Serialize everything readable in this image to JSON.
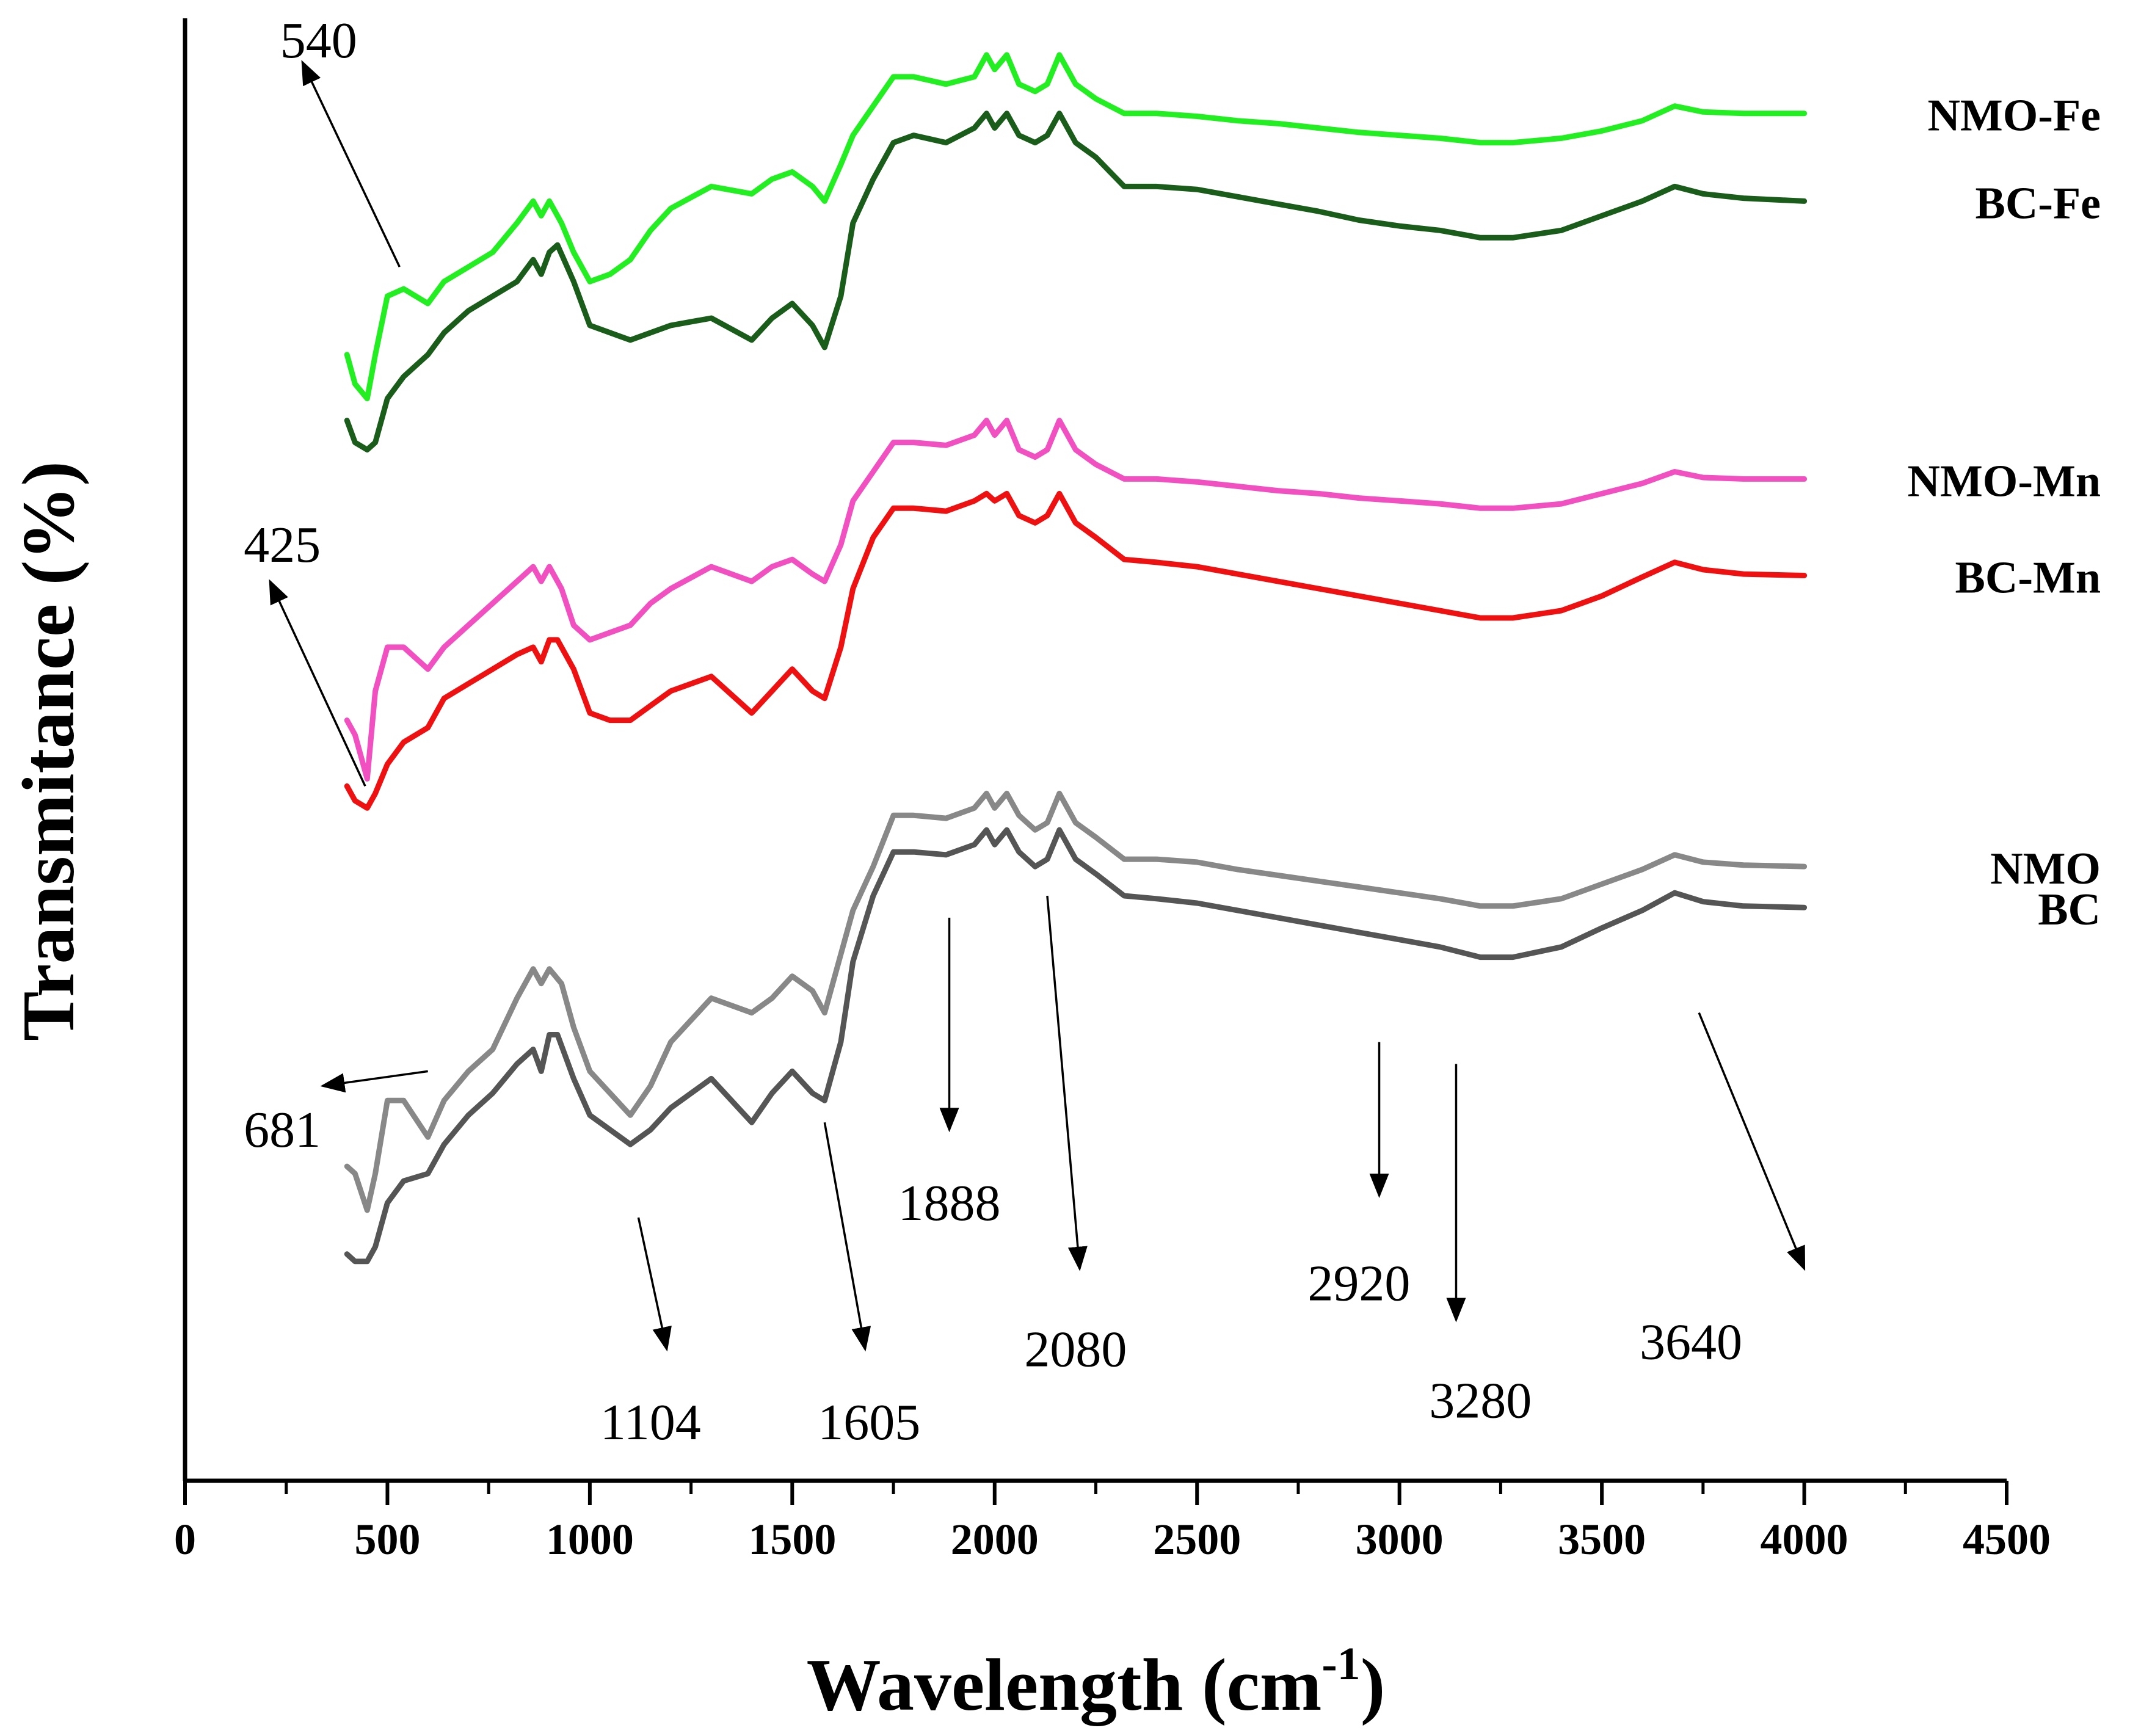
{
  "chart_data": {
    "type": "line",
    "title": "",
    "xlabel": "Wavelength (cm",
    "xlabel_sup": "-1",
    "xlabel_close": ")",
    "ylabel": "Transmitance (%)",
    "xlim": [
      0,
      4500
    ],
    "ylim": [
      0,
      100
    ],
    "y_ticks_shown": false,
    "grid": false,
    "legend": "inline labels at right end of each curve",
    "x_ticks": [
      0,
      500,
      1000,
      1500,
      2000,
      2500,
      3000,
      3500,
      4000,
      4500
    ],
    "x_tick_labels": [
      "0",
      "500",
      "1000",
      "1500",
      "2000",
      "2500",
      "3000",
      "3500",
      "4000",
      "4500"
    ],
    "series": [
      {
        "name": "NMO-Fe",
        "color": "#22ee22",
        "x": [
          400,
          420,
          450,
          470,
          500,
          540,
          600,
          640,
          700,
          760,
          820,
          860,
          880,
          900,
          930,
          960,
          1000,
          1050,
          1100,
          1150,
          1200,
          1300,
          1400,
          1450,
          1500,
          1550,
          1580,
          1620,
          1650,
          1700,
          1750,
          1800,
          1880,
          1950,
          1980,
          2000,
          2030,
          2060,
          2100,
          2130,
          2160,
          2200,
          2250,
          2320,
          2400,
          2500,
          2600,
          2700,
          2800,
          2900,
          3000,
          3100,
          3200,
          3280,
          3400,
          3500,
          3600,
          3680,
          3750,
          3850,
          4000
        ],
        "y": [
          77.0,
          75.0,
          74.0,
          77.0,
          81.0,
          81.5,
          80.5,
          82.0,
          83.0,
          84.0,
          86.0,
          87.5,
          86.5,
          87.5,
          86.0,
          84.0,
          82.0,
          82.5,
          83.5,
          85.5,
          87.0,
          88.5,
          88.0,
          89.0,
          89.5,
          88.5,
          87.5,
          90.0,
          92.0,
          94.0,
          96.0,
          96.0,
          95.5,
          96.0,
          97.5,
          96.5,
          97.5,
          95.5,
          95.0,
          95.5,
          97.5,
          95.5,
          94.5,
          93.5,
          93.5,
          93.3,
          93.0,
          92.8,
          92.5,
          92.2,
          92.0,
          91.8,
          91.5,
          91.5,
          91.8,
          92.3,
          93.0,
          94.0,
          93.6,
          93.5,
          93.5
        ]
      },
      {
        "name": "BC-Fe",
        "color": "#1a5c1a",
        "x": [
          400,
          420,
          450,
          470,
          500,
          540,
          600,
          640,
          700,
          760,
          820,
          860,
          880,
          900,
          920,
          960,
          1000,
          1050,
          1100,
          1150,
          1200,
          1300,
          1400,
          1450,
          1500,
          1550,
          1580,
          1620,
          1650,
          1700,
          1750,
          1800,
          1880,
          1950,
          1980,
          2000,
          2030,
          2060,
          2100,
          2130,
          2160,
          2200,
          2250,
          2320,
          2400,
          2500,
          2600,
          2700,
          2800,
          2900,
          3000,
          3100,
          3200,
          3280,
          3400,
          3500,
          3600,
          3680,
          3750,
          3850,
          4000
        ],
        "y": [
          72.5,
          71.0,
          70.5,
          71.0,
          74.0,
          75.5,
          77.0,
          78.5,
          80.0,
          81.0,
          82.0,
          83.5,
          82.5,
          84.0,
          84.5,
          82.0,
          79.0,
          78.5,
          78.0,
          78.5,
          79.0,
          79.5,
          78.0,
          79.5,
          80.5,
          79.0,
          77.5,
          81.0,
          86.0,
          89.0,
          91.5,
          92.0,
          91.5,
          92.5,
          93.5,
          92.5,
          93.5,
          92.0,
          91.5,
          92.0,
          93.5,
          91.5,
          90.5,
          88.5,
          88.5,
          88.3,
          87.8,
          87.3,
          86.8,
          86.2,
          85.8,
          85.5,
          85.0,
          85.0,
          85.5,
          86.5,
          87.5,
          88.5,
          88.0,
          87.7,
          87.5
        ]
      },
      {
        "name": "NMO-Mn",
        "color": "#f050c0",
        "x": [
          400,
          420,
          450,
          470,
          500,
          540,
          600,
          640,
          700,
          760,
          820,
          860,
          880,
          900,
          930,
          960,
          1000,
          1050,
          1100,
          1150,
          1200,
          1300,
          1400,
          1450,
          1500,
          1550,
          1580,
          1620,
          1650,
          1700,
          1750,
          1800,
          1880,
          1950,
          1980,
          2000,
          2030,
          2060,
          2100,
          2130,
          2160,
          2200,
          2250,
          2320,
          2400,
          2500,
          2600,
          2700,
          2800,
          2900,
          3000,
          3100,
          3200,
          3280,
          3400,
          3500,
          3600,
          3680,
          3750,
          3850,
          4000
        ],
        "y": [
          52.0,
          51.0,
          48.0,
          54.0,
          57.0,
          57.0,
          55.5,
          57.0,
          58.5,
          60.0,
          61.5,
          62.5,
          61.5,
          62.5,
          61.0,
          58.5,
          57.5,
          58.0,
          58.5,
          60.0,
          61.0,
          62.5,
          61.5,
          62.5,
          63.0,
          62.0,
          61.5,
          64.0,
          67.0,
          69.0,
          71.0,
          71.0,
          70.8,
          71.5,
          72.5,
          71.5,
          72.5,
          70.5,
          70.0,
          70.5,
          72.5,
          70.5,
          69.5,
          68.5,
          68.5,
          68.3,
          68.0,
          67.7,
          67.5,
          67.2,
          67.0,
          66.8,
          66.5,
          66.5,
          66.8,
          67.5,
          68.2,
          69.0,
          68.6,
          68.5,
          68.5
        ]
      },
      {
        "name": "BC-Mn",
        "color": "#ee1111",
        "x": [
          400,
          420,
          450,
          470,
          500,
          540,
          600,
          640,
          700,
          760,
          820,
          860,
          880,
          900,
          920,
          960,
          1000,
          1050,
          1100,
          1150,
          1200,
          1300,
          1400,
          1450,
          1500,
          1550,
          1580,
          1620,
          1650,
          1700,
          1750,
          1800,
          1880,
          1950,
          1980,
          2000,
          2030,
          2060,
          2100,
          2130,
          2160,
          2200,
          2250,
          2320,
          2400,
          2500,
          2600,
          2700,
          2800,
          2900,
          3000,
          3100,
          3200,
          3280,
          3400,
          3500,
          3600,
          3680,
          3750,
          3850,
          4000
        ],
        "y": [
          47.5,
          46.5,
          46.0,
          47.0,
          49.0,
          50.5,
          51.5,
          53.5,
          54.5,
          55.5,
          56.5,
          57.0,
          56.0,
          57.5,
          57.5,
          55.5,
          52.5,
          52.0,
          52.0,
          53.0,
          54.0,
          55.0,
          52.5,
          54.0,
          55.5,
          54.0,
          53.5,
          57.0,
          61.0,
          64.5,
          66.5,
          66.5,
          66.3,
          67.0,
          67.5,
          67.0,
          67.5,
          66.0,
          65.5,
          66.0,
          67.5,
          65.5,
          64.5,
          63.0,
          62.8,
          62.5,
          62.0,
          61.5,
          61.0,
          60.5,
          60.0,
          59.5,
          59.0,
          59.0,
          59.5,
          60.5,
          61.8,
          62.8,
          62.3,
          62.0,
          61.9
        ]
      },
      {
        "name": "NMO",
        "color": "#888888",
        "x": [
          400,
          420,
          450,
          470,
          500,
          540,
          600,
          640,
          700,
          760,
          820,
          860,
          880,
          900,
          930,
          960,
          1000,
          1050,
          1100,
          1150,
          1200,
          1300,
          1400,
          1450,
          1500,
          1550,
          1580,
          1620,
          1650,
          1700,
          1750,
          1800,
          1880,
          1950,
          1980,
          2000,
          2030,
          2060,
          2100,
          2130,
          2160,
          2200,
          2250,
          2320,
          2400,
          2500,
          2600,
          2700,
          2800,
          2900,
          3000,
          3100,
          3200,
          3280,
          3400,
          3500,
          3600,
          3680,
          3750,
          3850,
          4000
        ],
        "y": [
          21.5,
          21.0,
          18.5,
          21.0,
          26.0,
          26.0,
          23.5,
          26.0,
          28.0,
          29.5,
          33.0,
          35.0,
          34.0,
          35.0,
          34.0,
          31.0,
          28.0,
          26.5,
          25.0,
          27.0,
          30.0,
          33.0,
          32.0,
          33.0,
          34.5,
          33.5,
          32.0,
          36.0,
          39.0,
          42.0,
          45.5,
          45.5,
          45.3,
          46.0,
          47.0,
          46.0,
          47.0,
          45.5,
          44.5,
          45.0,
          47.0,
          45.0,
          44.0,
          42.5,
          42.5,
          42.3,
          41.8,
          41.4,
          41.0,
          40.6,
          40.2,
          39.8,
          39.3,
          39.3,
          39.8,
          40.8,
          41.8,
          42.8,
          42.3,
          42.1,
          42.0
        ]
      },
      {
        "name": "BC",
        "color": "#555555",
        "x": [
          400,
          420,
          450,
          470,
          500,
          540,
          600,
          640,
          700,
          760,
          820,
          860,
          880,
          900,
          920,
          960,
          1000,
          1050,
          1100,
          1150,
          1200,
          1300,
          1400,
          1450,
          1500,
          1550,
          1580,
          1620,
          1650,
          1700,
          1750,
          1800,
          1880,
          1950,
          1980,
          2000,
          2030,
          2060,
          2100,
          2130,
          2160,
          2200,
          2250,
          2320,
          2400,
          2500,
          2600,
          2700,
          2800,
          2900,
          3000,
          3100,
          3200,
          3280,
          3400,
          3500,
          3600,
          3680,
          3750,
          3850,
          4000
        ],
        "y": [
          15.5,
          15.0,
          15.0,
          16.0,
          19.0,
          20.5,
          21.0,
          23.0,
          25.0,
          26.5,
          28.5,
          29.5,
          28.0,
          30.5,
          30.5,
          27.5,
          25.0,
          24.0,
          23.0,
          24.0,
          25.5,
          27.5,
          24.5,
          26.5,
          28.0,
          26.5,
          26.0,
          30.0,
          35.5,
          40.0,
          43.0,
          43.0,
          42.8,
          43.5,
          44.5,
          43.5,
          44.5,
          43.0,
          42.0,
          42.5,
          44.5,
          42.5,
          41.5,
          40.0,
          39.8,
          39.5,
          39.0,
          38.5,
          38.0,
          37.5,
          37.0,
          36.5,
          35.8,
          35.8,
          36.5,
          37.8,
          39.0,
          40.2,
          39.6,
          39.3,
          39.2
        ]
      }
    ],
    "annotations": [
      {
        "text": "540",
        "label_x": 330,
        "label_y": 98.5,
        "arrow_from": [
          530,
          83.0
        ],
        "arrow_to": [
          290,
          97.0
        ]
      },
      {
        "text": "425",
        "label_x": 240,
        "label_y": 64.0,
        "arrow_from": [
          445,
          47.5
        ],
        "arrow_to": [
          210,
          61.5
        ]
      },
      {
        "text": "681",
        "label_x": 240,
        "label_y": 24.0,
        "arrow_from": [
          600,
          28.0
        ],
        "arrow_to": [
          340,
          27.0
        ]
      },
      {
        "text": "1104",
        "label_x": 1150,
        "label_y": 4.0,
        "arrow_from": [
          1120,
          18.0
        ],
        "arrow_to": [
          1190,
          9.0
        ]
      },
      {
        "text": "1605",
        "label_x": 1690,
        "label_y": 4.0,
        "arrow_from": [
          1580,
          24.5
        ],
        "arrow_to": [
          1680,
          9.0
        ]
      },
      {
        "text": "1888",
        "label_x": 1888,
        "label_y": 19.0,
        "arrow_from": [
          1888,
          38.5
        ],
        "arrow_to": [
          1888,
          24.0
        ]
      },
      {
        "text": "2080",
        "label_x": 2200,
        "label_y": 9.0,
        "arrow_from": [
          2130,
          40.0
        ],
        "arrow_to": [
          2210,
          14.5
        ]
      },
      {
        "text": "2920",
        "label_x": 2900,
        "label_y": 13.5,
        "arrow_from": [
          2950,
          30.0
        ],
        "arrow_to": [
          2950,
          19.5
        ]
      },
      {
        "text": "3280",
        "label_x": 3200,
        "label_y": 5.5,
        "arrow_from": [
          3140,
          28.5
        ],
        "arrow_to": [
          3140,
          11.0
        ]
      },
      {
        "text": "3640",
        "label_x": 3720,
        "label_y": 9.5,
        "arrow_from": [
          3740,
          32.0
        ],
        "arrow_to": [
          4000,
          14.5
        ]
      }
    ]
  }
}
